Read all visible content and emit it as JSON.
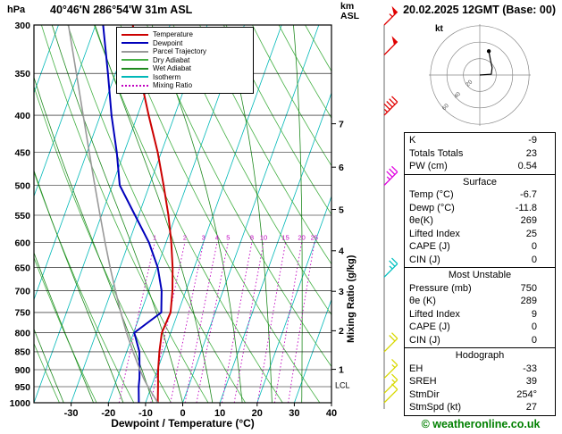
{
  "header": {
    "pressure_unit": "hPa",
    "station": "40°46'N 286°54'W 31m ASL",
    "datetime": "20.02.2025 12GMT (Base: 00)",
    "km_label": "km",
    "asl_label": "ASL"
  },
  "axes": {
    "xlabel": "Dewpoint / Temperature (°C)",
    "mixing_ratio_label": "Mixing Ratio (g/kg)",
    "pressure_ticks": [
      300,
      350,
      400,
      450,
      500,
      550,
      600,
      650,
      700,
      750,
      800,
      850,
      900,
      950,
      1000
    ],
    "temp_ticks": [
      -30,
      -20,
      -10,
      0,
      10,
      20,
      30,
      40
    ],
    "km_ticks": [
      {
        "km": 7,
        "pressure": 411
      },
      {
        "km": 6,
        "pressure": 472
      },
      {
        "km": 5,
        "pressure": 540
      },
      {
        "km": 4,
        "pressure": 616
      },
      {
        "km": 3,
        "pressure": 701
      },
      {
        "km": 2,
        "pressure": 795
      },
      {
        "km": 1,
        "pressure": 899
      }
    ],
    "lcl_label": "LCL",
    "lcl_pressure": 946
  },
  "legend": [
    {
      "label": "Temperature",
      "color": "#cc0000",
      "style": "solid"
    },
    {
      "label": "Dewpoint",
      "color": "#0000bb",
      "style": "solid"
    },
    {
      "label": "Parcel Trajectory",
      "color": "#999999",
      "style": "solid"
    },
    {
      "label": "Dry Adiabat",
      "color": "#44b044",
      "style": "solid"
    },
    {
      "label": "Wet Adiabat",
      "color": "#1f8a1f",
      "style": "solid"
    },
    {
      "label": "Isotherm",
      "color": "#00b8b8",
      "style": "solid"
    },
    {
      "label": "Mixing Ratio",
      "color": "#c000c0",
      "style": "dotted"
    }
  ],
  "chart_data": {
    "type": "line",
    "title": "Skew-T log-P sounding",
    "x": {
      "label": "Dewpoint / Temperature (°C)",
      "min": -40,
      "max": 40,
      "skew": 0.36
    },
    "y": {
      "label": "Pressure (hPa)",
      "min": 300,
      "max": 1000,
      "scale": "log"
    },
    "pressure_levels": [
      1000,
      950,
      925,
      900,
      850,
      800,
      750,
      700,
      650,
      600,
      550,
      500,
      450,
      400,
      350,
      300
    ],
    "series": [
      {
        "name": "Temperature",
        "color": "#cc0000",
        "width": 2,
        "values": [
          -6.7,
          -8.2,
          -9.0,
          -9.8,
          -11.2,
          -12.4,
          -12.0,
          -13.6,
          -15.8,
          -18.6,
          -22.0,
          -26.2,
          -31.0,
          -37.0,
          -43.5,
          -50.0
        ]
      },
      {
        "name": "Dewpoint",
        "color": "#0000bb",
        "width": 2,
        "values": [
          -11.8,
          -13.4,
          -14.0,
          -14.8,
          -16.6,
          -19.8,
          -14.5,
          -16.5,
          -19.8,
          -24.6,
          -31.0,
          -38.0,
          -42.0,
          -47.0,
          -52.0,
          -58.0
        ]
      },
      {
        "name": "Parcel Trajectory",
        "color": "#999999",
        "width": 1.6,
        "values": [
          -6.7,
          -10.9,
          -12.9,
          -14.7,
          -18.3,
          -21.9,
          -25.4,
          -28.9,
          -32.6,
          -36.4,
          -40.4,
          -44.7,
          -49.4,
          -54.6,
          -60.5,
          -67.3
        ]
      }
    ],
    "isotherms": {
      "start": -110,
      "end": 40,
      "step": 10,
      "color": "#00b8b8"
    },
    "dry_adiabats": {
      "start": 230,
      "end": 420,
      "step": 10,
      "color": "#44b044"
    },
    "wet_adiabats": {
      "start": -40,
      "end": 40,
      "step": 8,
      "color": "#1f8a1f"
    },
    "mixing_ratio_values": [
      1,
      2,
      3,
      4,
      5,
      8,
      10,
      15,
      20,
      25
    ],
    "mixing_ratio_color": "#c000c0",
    "wind_barbs": [
      {
        "pressure": 300,
        "speed_kt": 55,
        "color": "#e00000"
      },
      {
        "pressure": 330,
        "speed_kt": 50,
        "color": "#e00000"
      },
      {
        "pressure": 400,
        "speed_kt": 45,
        "color": "#e00000"
      },
      {
        "pressure": 500,
        "speed_kt": 35,
        "color": "#e000e0"
      },
      {
        "pressure": 670,
        "speed_kt": 25,
        "color": "#00c0c0"
      },
      {
        "pressure": 850,
        "speed_kt": 20,
        "color": "#d8d800"
      },
      {
        "pressure": 925,
        "speed_kt": 15,
        "color": "#d8d800"
      },
      {
        "pressure": 970,
        "speed_kt": 15,
        "color": "#d8d800"
      },
      {
        "pressure": 1000,
        "speed_kt": 10,
        "color": "#d8d800"
      }
    ]
  },
  "hodograph": {
    "unit_label": "kt",
    "rings_kt": [
      20,
      40,
      60
    ],
    "ring_labels": [
      "20",
      "40",
      "60"
    ],
    "trace_kt": [
      [
        0,
        0
      ],
      [
        14,
        1
      ],
      [
        15,
        9
      ],
      [
        13,
        18
      ],
      [
        11,
        29
      ]
    ],
    "marker_kt": [
      11,
      29
    ]
  },
  "panel": {
    "sections": [
      {
        "title": "",
        "rows": [
          [
            "K",
            "-9"
          ],
          [
            "Totals Totals",
            "23"
          ],
          [
            "PW (cm)",
            "0.54"
          ]
        ]
      },
      {
        "title": "Surface",
        "rows": [
          [
            "Temp (°C)",
            "-6.7"
          ],
          [
            "Dewp (°C)",
            "-11.8"
          ],
          [
            "θe(K)",
            "269"
          ],
          [
            "Lifted Index",
            "25"
          ],
          [
            "CAPE (J)",
            "0"
          ],
          [
            "CIN (J)",
            "0"
          ]
        ]
      },
      {
        "title": "Most Unstable",
        "rows": [
          [
            "Pressure (mb)",
            "750"
          ],
          [
            "θe (K)",
            "289"
          ],
          [
            "Lifted Index",
            "9"
          ],
          [
            "CAPE (J)",
            "0"
          ],
          [
            "CIN (J)",
            "0"
          ]
        ]
      },
      {
        "title": "Hodograph",
        "rows": [
          [
            "EH",
            "-33"
          ],
          [
            "SREH",
            "39"
          ],
          [
            "StmDir",
            "254°"
          ],
          [
            "StmSpd (kt)",
            "27"
          ]
        ]
      }
    ]
  },
  "footer": {
    "copyright": "© weatheronline.co.uk"
  }
}
